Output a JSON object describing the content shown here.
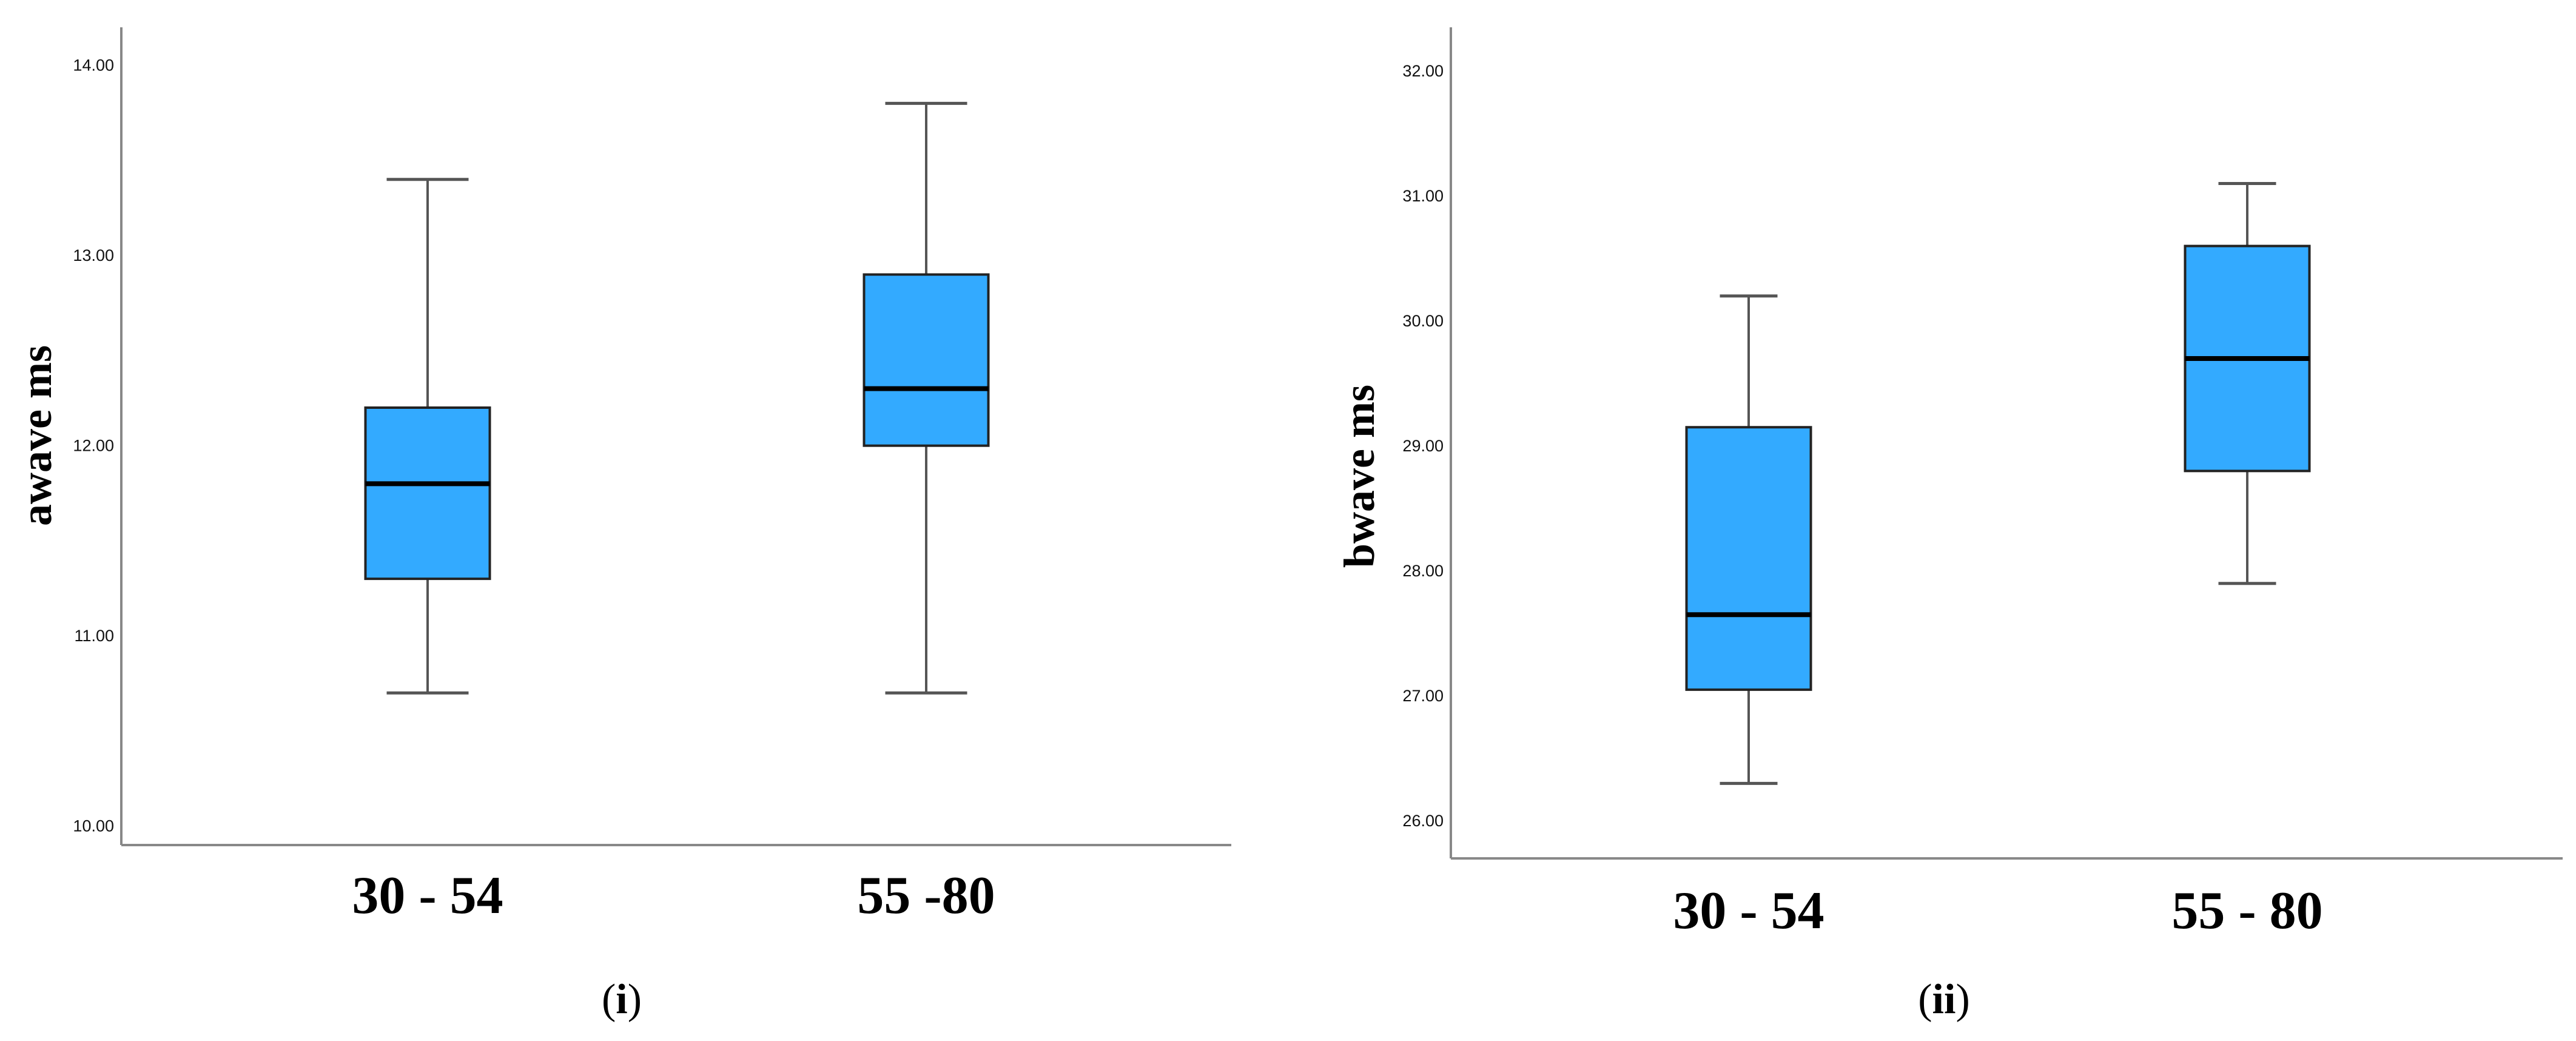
{
  "chart_data": [
    {
      "type": "box",
      "panel_label": "i",
      "ylabel": "awave ms",
      "ylim": [
        9.9,
        14.2
      ],
      "yticks": [
        "10.00",
        "11.00",
        "12.00",
        "13.00",
        "14.00"
      ],
      "categories": [
        "30 - 54",
        "55 -80"
      ],
      "boxes": [
        {
          "category": "30 - 54",
          "min": 10.7,
          "q1": 11.3,
          "median": 11.8,
          "q3": 12.2,
          "max": 13.4
        },
        {
          "category": "55 -80",
          "min": 10.7,
          "q1": 12.0,
          "median": 12.3,
          "q3": 12.9,
          "max": 13.8
        }
      ],
      "grid": false,
      "box_color": "#33aaff"
    },
    {
      "type": "box",
      "panel_label": "ii",
      "ylabel": "bwave ms",
      "ylim": [
        25.7,
        32.35
      ],
      "yticks": [
        "26.00",
        "27.00",
        "28.00",
        "29.00",
        "30.00",
        "31.00",
        "32.00"
      ],
      "categories": [
        "30 - 54",
        "55 - 80"
      ],
      "boxes": [
        {
          "category": "30 - 54",
          "min": 26.3,
          "q1": 27.05,
          "median": 27.65,
          "q3": 29.15,
          "max": 30.2
        },
        {
          "category": "55 - 80",
          "min": 27.9,
          "q1": 28.8,
          "median": 29.7,
          "q3": 30.6,
          "max": 31.1
        }
      ],
      "grid": false,
      "box_color": "#33aaff"
    }
  ]
}
